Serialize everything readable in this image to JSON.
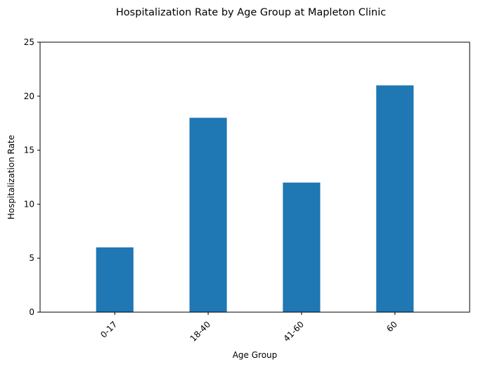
{
  "chart_data": {
    "type": "bar",
    "title": "Hospitalization Rate by Age Group at Mapleton Clinic",
    "xlabel": "Age Group",
    "ylabel": "Hospitalization Rate",
    "categories": [
      "0-17",
      "18-40",
      "41-60",
      "60"
    ],
    "values": [
      6,
      18,
      12,
      21
    ],
    "ylim": [
      0,
      25
    ],
    "yticks": [
      0,
      5,
      10,
      15,
      20,
      25
    ],
    "grid": false,
    "bar_color": "#1f77b4",
    "x_tick_rotation_deg": 45
  }
}
